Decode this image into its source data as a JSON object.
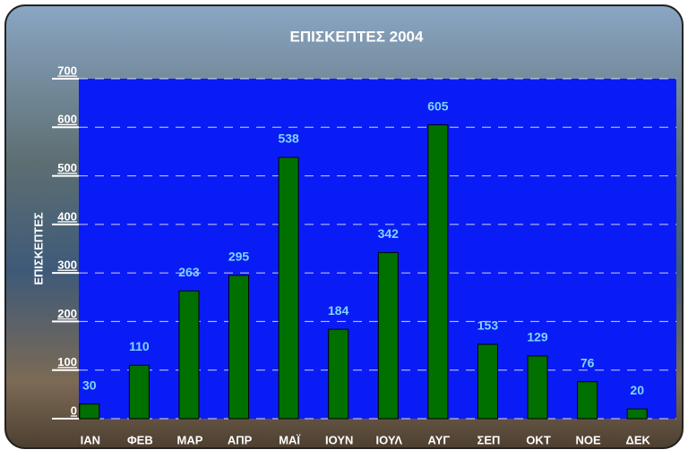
{
  "chart_data": {
    "type": "bar",
    "title": "ΕΠΙΣΚΕΠΤΕΣ 2004",
    "y_label": "ΕΠΙΣΚΕΠΤΕΣ",
    "categories": [
      "ΙΑΝ",
      "ΦΕΒ",
      "ΜΑΡ",
      "ΑΠΡ",
      "ΜΑΪ",
      "ΙΟΥΝ",
      "ΙΟΥΛ",
      "ΑΥΓ",
      "ΣΕΠ",
      "ΟΚΤ",
      "ΝΟΕ",
      "ΔΕΚ"
    ],
    "values": [
      30,
      110,
      263,
      295,
      538,
      184,
      342,
      605,
      153,
      129,
      76,
      20
    ],
    "color": "#007000",
    "plot_background": "#0a1cf5",
    "label_color": "#7fd4ff",
    "ylim": [
      0,
      700
    ],
    "yticks": [
      0,
      100,
      200,
      300,
      400,
      500,
      600,
      700
    ],
    "grid": true
  }
}
